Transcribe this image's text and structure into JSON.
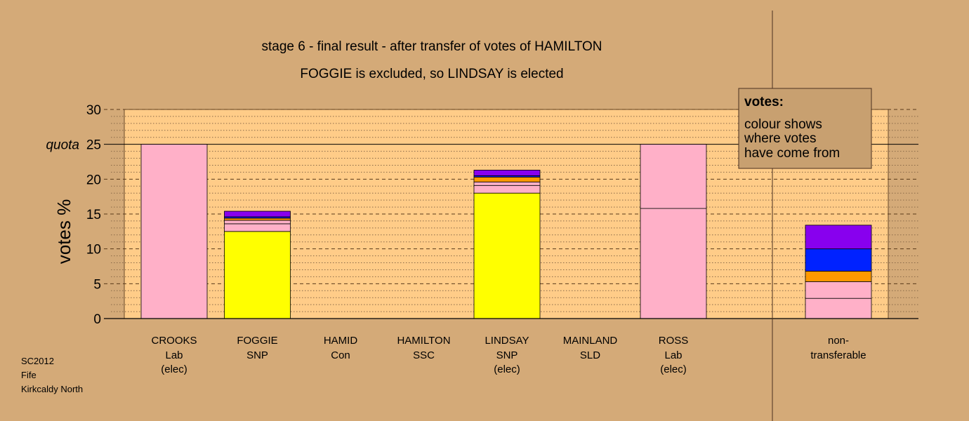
{
  "chart_data": {
    "type": "bar",
    "title": "stage 6 - final result - after transfer of votes of HAMILTON",
    "subtitle": "FOGGIE is excluded, so LINDSAY is elected",
    "ylabel": "votes %",
    "ylim": [
      0,
      30
    ],
    "yticks": [
      0,
      5,
      10,
      15,
      20,
      25,
      30
    ],
    "quota": 25,
    "quota_label": "quota",
    "grid": true,
    "legend_position": "top-right",
    "colors": {
      "yellow": "#ffff00",
      "pink": "#ffb0c8",
      "orange": "#ff9900",
      "blue": "#0022ff",
      "purple": "#8800ee",
      "plot_background": "#ffcc88",
      "page_background": "#d4aa78",
      "legend_background": "#c8a070"
    },
    "categories": [
      {
        "name": "CROOKS",
        "party": "Lab",
        "status": "(elec)",
        "segments": [
          {
            "value": 25.0,
            "color": "#ffb0c8"
          }
        ]
      },
      {
        "name": "FOGGIE",
        "party": "SNP",
        "status": "",
        "segments": [
          {
            "value": 12.5,
            "color": "#ffff00"
          },
          {
            "value": 1.1,
            "color": "#ffb0c8"
          },
          {
            "value": 0.5,
            "color": "#ffb0c8"
          },
          {
            "value": 0.3,
            "color": "#ff9900"
          },
          {
            "value": 0.2,
            "color": "#0022ff"
          },
          {
            "value": 0.8,
            "color": "#8800ee"
          }
        ]
      },
      {
        "name": "HAMID",
        "party": "Con",
        "status": "",
        "segments": []
      },
      {
        "name": "HAMILTON",
        "party": "SSC",
        "status": "",
        "segments": []
      },
      {
        "name": "LINDSAY",
        "party": "SNP",
        "status": "(elec)",
        "segments": [
          {
            "value": 18.0,
            "color": "#ffff00"
          },
          {
            "value": 1.1,
            "color": "#ffb0c8"
          },
          {
            "value": 0.5,
            "color": "#ffb0c8"
          },
          {
            "value": 0.7,
            "color": "#ff9900"
          },
          {
            "value": 0.2,
            "color": "#0022ff"
          },
          {
            "value": 0.8,
            "color": "#8800ee"
          }
        ]
      },
      {
        "name": "MAINLAND",
        "party": "SLD",
        "status": "",
        "segments": []
      },
      {
        "name": "ROSS",
        "party": "Lab",
        "status": "(elec)",
        "segments": [
          {
            "value": 15.8,
            "color": "#ffb0c8"
          },
          {
            "value": 9.2,
            "color": "#ffb0c8"
          }
        ]
      }
    ],
    "nontransferable": {
      "label_line1": "non-",
      "label_line2": "transferable",
      "segments": [
        {
          "value": 2.9,
          "color": "#ffb0c8"
        },
        {
          "value": 2.4,
          "color": "#ffb0c8"
        },
        {
          "value": 1.5,
          "color": "#ff9900"
        },
        {
          "value": 3.2,
          "color": "#0022ff"
        },
        {
          "value": 3.4,
          "color": "#8800ee"
        }
      ]
    },
    "legend": {
      "heading": "votes:",
      "line1": "colour shows",
      "line2": "where votes",
      "line3": "have come from"
    }
  },
  "info": {
    "line1": "SC2012",
    "line2": "Fife",
    "line3": "Kirkcaldy North"
  }
}
